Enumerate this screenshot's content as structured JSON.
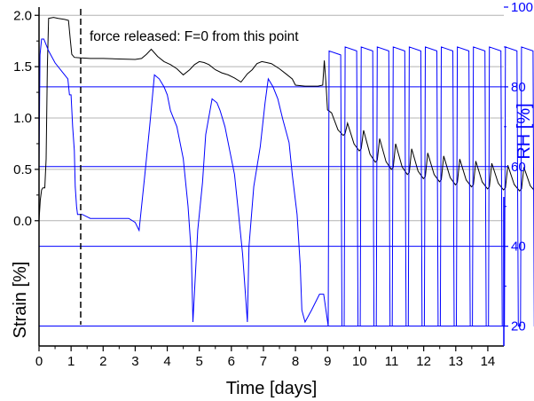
{
  "chart_data": {
    "type": "line",
    "xlabel": "Time [days]",
    "ylabel_left": "Strain [%]",
    "ylabel_right": "RH [%]",
    "xlim": [
      0,
      14.5
    ],
    "ylim_left": [
      -1.22,
      2.08
    ],
    "ylim_right": [
      15,
      100
    ],
    "x_ticks": [
      0,
      1,
      2,
      3,
      4,
      5,
      6,
      7,
      8,
      9,
      10,
      11,
      12,
      13,
      14
    ],
    "y_left_ticks": [
      "0.0",
      "0.5",
      "1.0",
      "1.5",
      "2.0"
    ],
    "y_left_tick_values": [
      0.0,
      0.5,
      1.0,
      1.5,
      2.0
    ],
    "y_right_ticks": [
      "20",
      "40",
      "60",
      "80",
      "100"
    ],
    "y_right_tick_values": [
      20,
      40,
      60,
      80,
      100
    ],
    "grid": true,
    "colors": {
      "strain": "#000000",
      "rh": "#0000ff",
      "grid": "#b4b4b4"
    },
    "annotation": {
      "text": "force released: F=0 from this point",
      "x": 1.3
    },
    "series": [
      {
        "key": "strain",
        "axis": "left",
        "x": [
          0,
          0.04,
          0.08,
          0.12,
          0.18,
          0.22,
          0.26,
          0.3,
          0.45,
          0.6,
          0.8,
          0.92,
          0.98,
          1.02,
          1.1,
          1.3,
          1.6,
          2.0,
          2.5,
          3.0,
          3.2,
          3.35,
          3.5,
          3.7,
          3.9,
          4.1,
          4.3,
          4.5,
          4.7,
          4.85,
          5.0,
          5.15,
          5.3,
          5.5,
          5.7,
          5.9,
          6.1,
          6.3,
          6.5,
          6.65,
          6.8,
          6.95,
          7.1,
          7.25,
          7.5,
          7.7,
          7.9,
          8.0,
          8.3,
          8.7,
          8.85,
          8.9,
          8.95,
          9.0
        ],
        "y": [
          0.0,
          0.2,
          0.3,
          0.32,
          0.32,
          0.6,
          1.5,
          1.97,
          1.98,
          1.97,
          1.96,
          1.95,
          1.75,
          1.62,
          1.59,
          1.585,
          1.58,
          1.58,
          1.575,
          1.57,
          1.58,
          1.62,
          1.67,
          1.6,
          1.55,
          1.52,
          1.48,
          1.42,
          1.47,
          1.52,
          1.55,
          1.54,
          1.52,
          1.47,
          1.44,
          1.42,
          1.39,
          1.35,
          1.43,
          1.47,
          1.53,
          1.55,
          1.54,
          1.53,
          1.48,
          1.43,
          1.38,
          1.32,
          1.31,
          1.31,
          1.32,
          1.56,
          1.35,
          1.08
        ]
      },
      {
        "key": "rh",
        "axis": "right",
        "x": [
          0,
          0.03,
          0.08,
          0.15,
          0.3,
          0.5,
          0.7,
          0.9,
          0.95,
          1.0,
          1.05,
          1.1,
          1.13,
          1.17,
          1.2,
          1.25,
          1.35,
          1.6,
          2.0,
          2.5,
          2.8,
          3.0,
          3.12,
          3.3,
          3.45,
          3.6,
          3.75,
          3.9,
          4.0,
          4.1,
          4.3,
          4.5,
          4.65,
          4.75,
          4.8,
          4.95,
          5.1,
          5.2,
          5.4,
          5.55,
          5.65,
          5.8,
          5.95,
          6.1,
          6.2,
          6.35,
          6.5,
          6.55,
          6.7,
          6.9,
          7.05,
          7.15,
          7.3,
          7.45,
          7.6,
          7.8,
          7.9,
          8.05,
          8.15,
          8.2,
          8.3,
          8.5,
          8.75,
          8.88
        ],
        "y": [
          60,
          88,
          92,
          92,
          89,
          86,
          84,
          82,
          78,
          78,
          70,
          64,
          55,
          50,
          48,
          48,
          48,
          47,
          47,
          47,
          47,
          46,
          44,
          58,
          70,
          83,
          82,
          80,
          78,
          74,
          70,
          62,
          50,
          38,
          21,
          44,
          56,
          68,
          77,
          76,
          74,
          70,
          64,
          58,
          50,
          38,
          21,
          40,
          55,
          65,
          76,
          82,
          80,
          77,
          72,
          66,
          58,
          48,
          35,
          24,
          21,
          24,
          28,
          28
        ]
      }
    ],
    "strain_cycles": {
      "x_start": 9.05,
      "period": 0.5,
      "count": 20,
      "peaks": [
        1.05,
        0.95,
        0.88,
        0.8,
        0.75,
        0.7,
        0.66,
        0.63,
        0.6,
        0.58,
        0.56,
        0.54,
        0.52,
        0.51,
        0.5,
        0.49,
        0.48,
        0.47,
        0.46,
        0.45
      ],
      "troughs": [
        0.83,
        0.68,
        0.57,
        0.5,
        0.45,
        0.41,
        0.38,
        0.35,
        0.33,
        0.31,
        0.3,
        0.29,
        0.28,
        0.27,
        0.26,
        0.26,
        0.25,
        0.25,
        0.24,
        0.24
      ]
    },
    "rh_cycles": {
      "x_start": 9.0,
      "period": 0.5,
      "count": 20,
      "high": [
        89,
        90,
        90,
        90,
        90,
        90,
        90,
        90,
        90,
        90,
        90,
        90,
        90,
        90,
        90,
        90,
        90,
        90,
        90,
        90
      ],
      "low": 20
    }
  }
}
